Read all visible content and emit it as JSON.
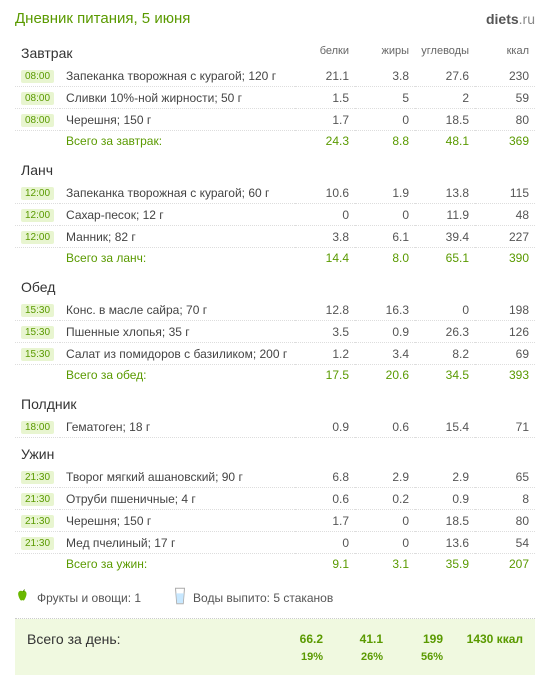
{
  "title": "Дневник питания, 5 июня",
  "logo_bold": "diets",
  "logo_suffix": ".ru",
  "columns": {
    "protein": "белки",
    "fat": "жиры",
    "carbs": "углеводы",
    "kcal": "ккал"
  },
  "meals": [
    {
      "name": "Завтрак",
      "items": [
        {
          "time": "08:00",
          "food": "Запеканка творожная с курагой; 120 г",
          "p": "21.1",
          "f": "3.8",
          "c": "27.6",
          "k": "230"
        },
        {
          "time": "08:00",
          "food": "Сливки 10%-ной жирности; 50 г",
          "p": "1.5",
          "f": "5",
          "c": "2",
          "k": "59"
        },
        {
          "time": "08:00",
          "food": "Черешня; 150 г",
          "p": "1.7",
          "f": "0",
          "c": "18.5",
          "k": "80"
        }
      ],
      "subtotal_label": "Всего за завтрак:",
      "subtotal": {
        "p": "24.3",
        "f": "8.8",
        "c": "48.1",
        "k": "369"
      }
    },
    {
      "name": "Ланч",
      "items": [
        {
          "time": "12:00",
          "food": "Запеканка творожная с курагой; 60 г",
          "p": "10.6",
          "f": "1.9",
          "c": "13.8",
          "k": "115"
        },
        {
          "time": "12:00",
          "food": "Сахар-песок; 12 г",
          "p": "0",
          "f": "0",
          "c": "11.9",
          "k": "48"
        },
        {
          "time": "12:00",
          "food": "Манник; 82 г",
          "p": "3.8",
          "f": "6.1",
          "c": "39.4",
          "k": "227"
        }
      ],
      "subtotal_label": "Всего за ланч:",
      "subtotal": {
        "p": "14.4",
        "f": "8.0",
        "c": "65.1",
        "k": "390"
      }
    },
    {
      "name": "Обед",
      "items": [
        {
          "time": "15:30",
          "food": "Конс. в масле сайра; 70 г",
          "p": "12.8",
          "f": "16.3",
          "c": "0",
          "k": "198"
        },
        {
          "time": "15:30",
          "food": "Пшенные хлопья; 35 г",
          "p": "3.5",
          "f": "0.9",
          "c": "26.3",
          "k": "126"
        },
        {
          "time": "15:30",
          "food": "Салат из помидоров с базиликом; 200 г",
          "p": "1.2",
          "f": "3.4",
          "c": "8.2",
          "k": "69"
        }
      ],
      "subtotal_label": "Всего за обед:",
      "subtotal": {
        "p": "17.5",
        "f": "20.6",
        "c": "34.5",
        "k": "393"
      }
    },
    {
      "name": "Полдник",
      "items": [
        {
          "time": "18:00",
          "food": "Гематоген; 18 г",
          "p": "0.9",
          "f": "0.6",
          "c": "15.4",
          "k": "71"
        }
      ],
      "subtotal_label": "",
      "subtotal": null
    },
    {
      "name": "Ужин",
      "items": [
        {
          "time": "21:30",
          "food": "Творог мягкий ашановский; 90 г",
          "p": "6.8",
          "f": "2.9",
          "c": "2.9",
          "k": "65"
        },
        {
          "time": "21:30",
          "food": "Отруби пшеничные; 4 г",
          "p": "0.6",
          "f": "0.2",
          "c": "0.9",
          "k": "8"
        },
        {
          "time": "21:30",
          "food": "Черешня; 150 г",
          "p": "1.7",
          "f": "0",
          "c": "18.5",
          "k": "80"
        },
        {
          "time": "21:30",
          "food": "Мед пчелиный; 17 г",
          "p": "0",
          "f": "0",
          "c": "13.6",
          "k": "54"
        }
      ],
      "subtotal_label": "Всего за ужин:",
      "subtotal": {
        "p": "9.1",
        "f": "3.1",
        "c": "35.9",
        "k": "207"
      }
    }
  ],
  "fruits_label": "Фрукты и овощи: 1",
  "water_label": "Воды выпито: 5 стаканов",
  "day_total_label": "Всего за день:",
  "day_total": {
    "p": "66.2",
    "f": "41.1",
    "c": "199",
    "k": "1430 ккал"
  },
  "day_pct": {
    "p": "19%",
    "f": "26%",
    "c": "56%",
    "k": ""
  },
  "colors": {
    "accent": "#5a9a00",
    "time_bg": "#e8f5d0",
    "total_bg": "#f0f9e0"
  }
}
